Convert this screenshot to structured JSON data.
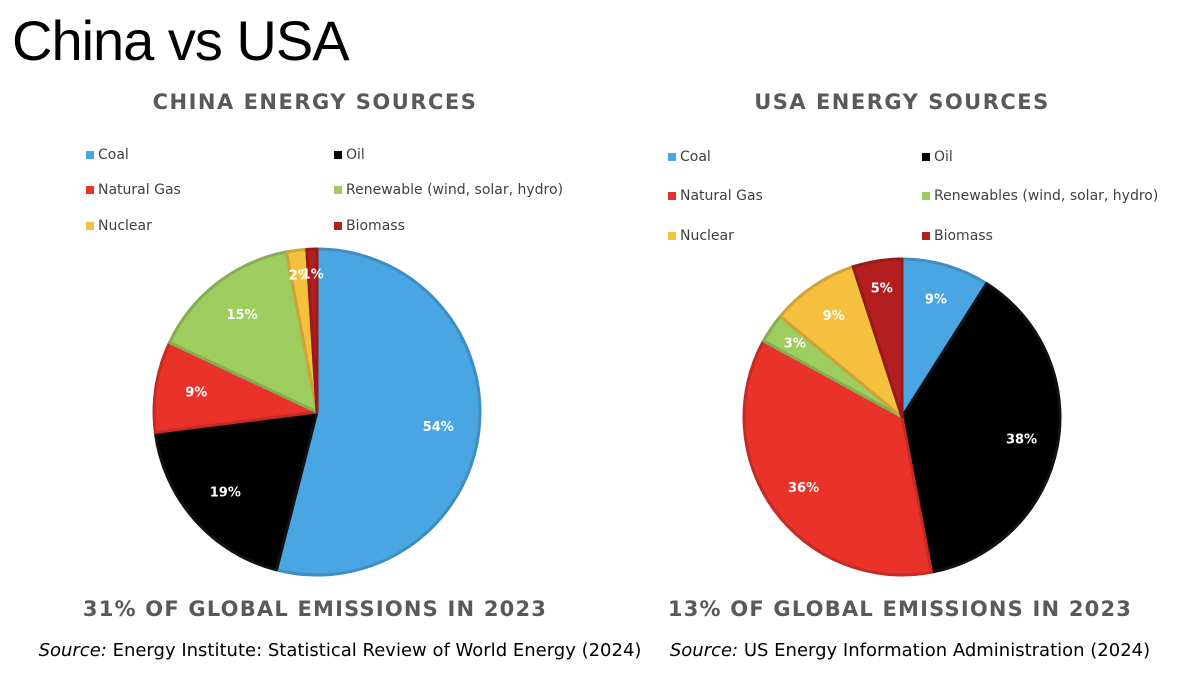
{
  "page": {
    "title": "China vs USA"
  },
  "chart_data": [
    {
      "type": "pie",
      "title": "CHINA ENERGY SOURCES",
      "categories": [
        "Coal",
        "Oil",
        "Natural Gas",
        "Renewable (wind, solar, hydro)",
        "Nuclear",
        "Biomass"
      ],
      "values": [
        54,
        19,
        9,
        15,
        2,
        1
      ],
      "data_labels": [
        "54%",
        "19%",
        "9%",
        "15%",
        "2%",
        "1%"
      ],
      "colors": [
        "#4aa6e3",
        "#000000",
        "#e8322a",
        "#9dcc5f",
        "#f4c03d",
        "#b31f1f"
      ],
      "legend_position": "top",
      "footer": "31% OF GLOBAL EMISSIONS IN 2023",
      "source_prefix": "Source:",
      "source_text": " Energy Institute: Statistical Review of World Energy (2024)"
    },
    {
      "type": "pie",
      "title": "USA ENERGY SOURCES",
      "categories": [
        "Coal",
        "Oil",
        "Natural Gas",
        "Renewables (wind, solar, hydro)",
        "Nuclear",
        "Biomass"
      ],
      "values": [
        9,
        38,
        36,
        3,
        9,
        5
      ],
      "data_labels": [
        "9%",
        "38%",
        "36%",
        "3%",
        "9%",
        "5%"
      ],
      "colors": [
        "#4aa6e3",
        "#000000",
        "#e8322a",
        "#9dcc5f",
        "#f4c03d",
        "#b31f1f"
      ],
      "legend_position": "top",
      "footer": "13% OF GLOBAL EMISSIONS IN 2023",
      "source_prefix": "Source:",
      "source_text": " US Energy Information Administration (2024)"
    }
  ]
}
